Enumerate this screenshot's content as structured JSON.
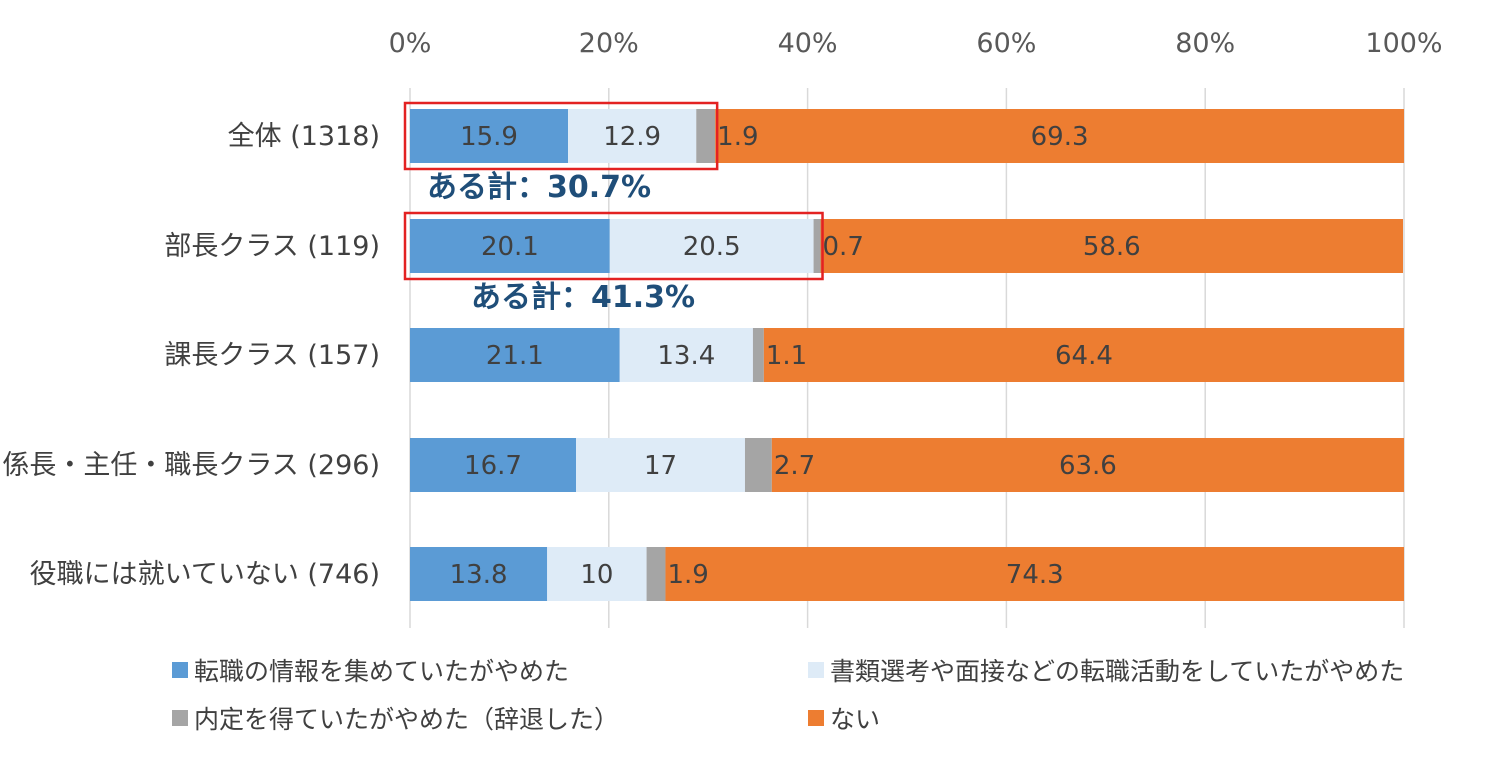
{
  "chart_data": {
    "type": "bar",
    "orientation": "horizontal",
    "stacked": true,
    "percent_stacked": true,
    "xlim": [
      0,
      100
    ],
    "x_ticks": [
      "0%",
      "20%",
      "40%",
      "60%",
      "80%",
      "100%"
    ],
    "x_tick_values": [
      0,
      20,
      40,
      60,
      80,
      100
    ],
    "grid": true,
    "legend_position": "bottom",
    "categories": [
      "全体 (1318)",
      "部長クラス (119)",
      "課長クラス (157)",
      "係長・主任・職長クラス (296)",
      "役職には就いていない (746)"
    ],
    "series": [
      {
        "name": "転職の情報を集めていたがやめた",
        "color": "#5b9bd5",
        "values": [
          15.9,
          20.1,
          21.1,
          16.7,
          13.8
        ],
        "labels": [
          "15.9",
          "20.1",
          "21.1",
          "16.7",
          "13.8"
        ]
      },
      {
        "name": "書類選考や面接などの転職活動をしていたがやめた",
        "color": "#deebf7",
        "values": [
          12.9,
          20.5,
          13.4,
          17,
          10
        ],
        "labels": [
          "12.9",
          "20.5",
          "13.4",
          "17",
          "10"
        ]
      },
      {
        "name": "内定を得ていたがやめた（辞退した）",
        "color": "#a5a5a5",
        "values": [
          1.9,
          0.7,
          1.1,
          2.7,
          1.9
        ],
        "labels": [
          "1.9",
          "0.7",
          "1.1",
          "2.7",
          "1.9"
        ]
      },
      {
        "name": "ない",
        "color": "#ed7d31",
        "values": [
          69.3,
          58.6,
          64.4,
          63.6,
          74.3
        ],
        "labels": [
          "69.3",
          "58.6",
          "64.4",
          "63.6",
          "74.3"
        ]
      }
    ],
    "annotations": [
      {
        "category_index": 0,
        "text": "ある計：30.7%",
        "value": 30.7,
        "box_color": "#e32222"
      },
      {
        "category_index": 1,
        "text": "ある計：41.3%",
        "value": 41.3,
        "box_color": "#e32222"
      }
    ]
  }
}
